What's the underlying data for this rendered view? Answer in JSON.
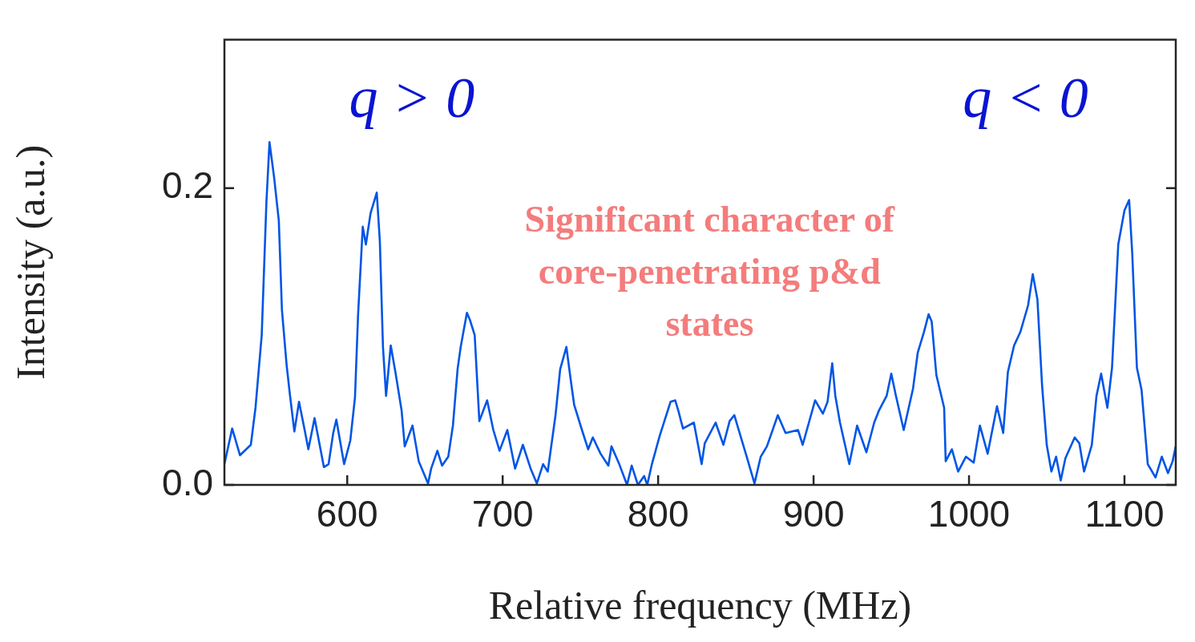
{
  "chart_data": {
    "type": "line",
    "xlabel": "Relative frequency (MHz)",
    "ylabel": "Intensity (a.u.)",
    "annotations": [
      "q > 0",
      "q < 0",
      "Significant character of\ncore-penetrating p&d\nstates"
    ],
    "xlim": [
      521,
      1133
    ],
    "ylim": [
      0,
      0.3
    ],
    "xticks": [
      600,
      700,
      800,
      900,
      1000,
      1100
    ],
    "yticks": [
      {
        "value": 0,
        "label": "0.0"
      },
      {
        "value": 0.2,
        "label": "0.2"
      }
    ],
    "grid": false,
    "legend": false,
    "marker": "none",
    "line_style": "solid",
    "series": [
      {
        "color": "#0055e6",
        "x": [
          521,
          526,
          531,
          538,
          541,
          545,
          548,
          550,
          553,
          556,
          558,
          561,
          563,
          566,
          569,
          573,
          575,
          579,
          585,
          588,
          591,
          593,
          598,
          602,
          605,
          607,
          610,
          612,
          615,
          619,
          621,
          623,
          625,
          628,
          631,
          635,
          637,
          642,
          646,
          652,
          654,
          658,
          661,
          665,
          668,
          671,
          673,
          677,
          679,
          682,
          685,
          690,
          694,
          698,
          703,
          708,
          713,
          718,
          722,
          726,
          729,
          734,
          737,
          741,
          744,
          746,
          751,
          755,
          758,
          763,
          768,
          770,
          775,
          780,
          783,
          787,
          791,
          793,
          796,
          801,
          808,
          811,
          813,
          816,
          823,
          828,
          830,
          837,
          842,
          846,
          849,
          853,
          857,
          862,
          866,
          870,
          877,
          882,
          890,
          893,
          897,
          901,
          906,
          909,
          912,
          914,
          917,
          923,
          928,
          934,
          939,
          942,
          947,
          950,
          953,
          958,
          964,
          967,
          971,
          974,
          976,
          979,
          984,
          985,
          989,
          993,
          998,
          1003,
          1007,
          1012,
          1018,
          1022,
          1025,
          1029,
          1033,
          1038,
          1041,
          1044,
          1047,
          1050,
          1053,
          1056,
          1059,
          1062,
          1068,
          1071,
          1074,
          1079,
          1082,
          1085,
          1089,
          1092,
          1096,
          1100,
          1103,
          1105,
          1108,
          1111,
          1115,
          1120,
          1124,
          1128,
          1131,
          1133
        ],
        "values": [
          0.014,
          0.038,
          0.02,
          0.027,
          0.052,
          0.101,
          0.19,
          0.231,
          0.207,
          0.178,
          0.118,
          0.081,
          0.062,
          0.036,
          0.056,
          0.035,
          0.024,
          0.045,
          0.012,
          0.014,
          0.035,
          0.044,
          0.014,
          0.03,
          0.059,
          0.115,
          0.174,
          0.162,
          0.183,
          0.197,
          0.164,
          0.093,
          0.06,
          0.094,
          0.076,
          0.05,
          0.026,
          0.04,
          0.016,
          0.001,
          0.011,
          0.023,
          0.013,
          0.019,
          0.04,
          0.078,
          0.093,
          0.116,
          0.111,
          0.101,
          0.043,
          0.057,
          0.037,
          0.023,
          0.037,
          0.011,
          0.027,
          0.011,
          0.001,
          0.014,
          0.009,
          0.047,
          0.078,
          0.093,
          0.069,
          0.054,
          0.037,
          0.024,
          0.032,
          0.021,
          0.013,
          0.026,
          0.014,
          0.0,
          0.013,
          0.0,
          0.006,
          0.0,
          0.014,
          0.033,
          0.056,
          0.057,
          0.05,
          0.038,
          0.042,
          0.014,
          0.028,
          0.042,
          0.027,
          0.043,
          0.047,
          0.033,
          0.019,
          0.001,
          0.019,
          0.026,
          0.047,
          0.035,
          0.037,
          0.027,
          0.042,
          0.057,
          0.048,
          0.056,
          0.082,
          0.06,
          0.042,
          0.014,
          0.04,
          0.022,
          0.042,
          0.05,
          0.06,
          0.075,
          0.06,
          0.037,
          0.065,
          0.089,
          0.103,
          0.115,
          0.11,
          0.074,
          0.052,
          0.016,
          0.024,
          0.009,
          0.019,
          0.015,
          0.04,
          0.021,
          0.053,
          0.035,
          0.076,
          0.094,
          0.103,
          0.121,
          0.142,
          0.125,
          0.067,
          0.027,
          0.009,
          0.019,
          0.003,
          0.018,
          0.032,
          0.028,
          0.009,
          0.027,
          0.06,
          0.075,
          0.052,
          0.079,
          0.162,
          0.185,
          0.192,
          0.156,
          0.079,
          0.064,
          0.014,
          0.005,
          0.019,
          0.008,
          0.016,
          0.026
        ]
      }
    ]
  }
}
